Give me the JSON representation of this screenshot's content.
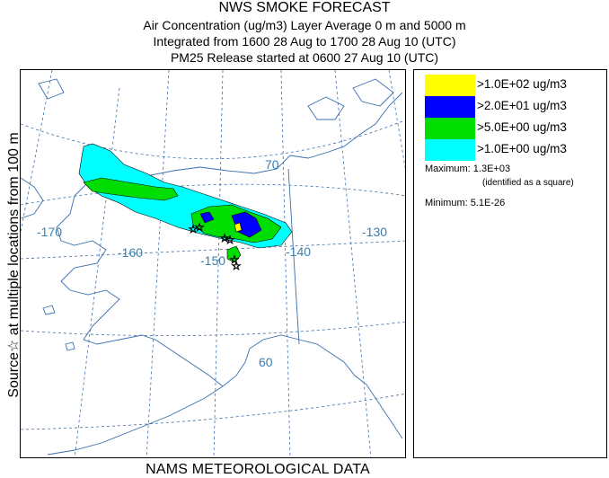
{
  "title": {
    "line1": "NWS SMOKE FORECAST",
    "line2": "Air Concentration (ug/m3) Layer Average    0 m and  5000 m",
    "line3": "Integrated from 1600 28 Aug to 1700 28 Aug 10 (UTC)",
    "line4": "PM25 Release started at 0600 27 Aug 10 (UTC)"
  },
  "side_label": "Source☆ at multiple locations  from   100 m",
  "footer": "NAMS METEOROLOGICAL DATA",
  "map": {
    "longitude_labels": [
      "-170",
      "-160",
      "-150",
      "-140",
      "-130"
    ],
    "latitude_labels": [
      "70",
      "60"
    ]
  },
  "legend": {
    "entries": [
      {
        "label": ">1.0E+02 ug/m3",
        "color": "#ffff00"
      },
      {
        "label": ">2.0E+01 ug/m3",
        "color": "#0000ff"
      },
      {
        "label": ">5.0E+00 ug/m3",
        "color": "#00dd00"
      },
      {
        "label": ">1.0E+00 ug/m3",
        "color": "#00ffff"
      }
    ],
    "maximum": "Maximum: 1.3E+03",
    "maximum_note": "(identified as a square)",
    "minimum": "Minimum: 5.1E-26"
  },
  "colors": {
    "coastline": "#3a6fb0",
    "gridline": "#3a6fb0",
    "grid_label": "#3a7fb0"
  }
}
